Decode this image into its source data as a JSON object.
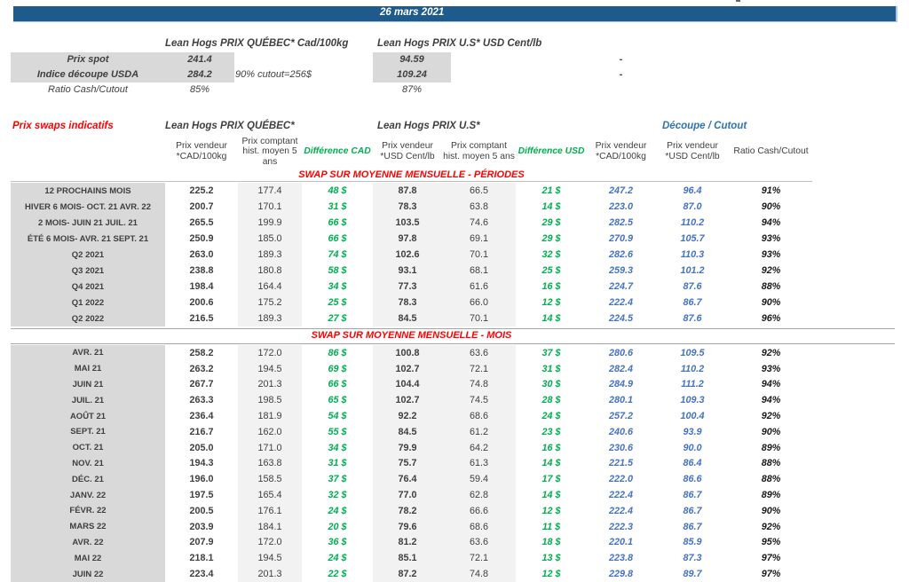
{
  "date": "26 mars 2021",
  "colors": {
    "date_bar_blue": "#1E5A8C",
    "section_red": "#FF0000",
    "difference_green": "#00AF50",
    "cutout_value_blue": "#4472C4",
    "cutout_header_blue": "#2E74B5",
    "label_cell_gray": "#D9D9D9",
    "column_band_gray": "#F2F2F2"
  },
  "top": {
    "quebec_header": "Lean Hogs PRIX QUÉBEC* Cad/100kg",
    "us_header": "Lean Hogs PRIX U.S* USD Cent/lb",
    "spot_label": "Prix spot",
    "spot_cad": "241.4",
    "spot_usd": "94.59",
    "spot_dash": "-",
    "indice_label": "Indice découpe USDA",
    "indice_cad": "284.2",
    "indice_usd": "109.24",
    "indice_note": "90% cutout=256$",
    "indice_dash": "-",
    "ratio_label": "Ratio Cash/Cutout",
    "ratio_cad": "85%",
    "ratio_usd": "87%"
  },
  "swaps": {
    "title": "Prix swaps indicatifs",
    "group_quebec": "Lean Hogs PRIX QUÉBEC*",
    "group_us": "Lean Hogs PRIX U.S*",
    "group_cutout": "Découpe / Cutout",
    "col_headers": [
      "Prix vendeur *CAD/100kg",
      "Prix comptant hist. moyen 5 ans",
      "Différence CAD",
      "Prix vendeur *USD Cent/lb",
      "Prix comptant hist. moyen 5 ans",
      "Différence USD",
      "Prix vendeur *CAD/100kg",
      "Prix vendeur *USD Cent/lb",
      "Ratio Cash/Cutout"
    ],
    "section1_title": "SWAP SUR MOYENNE MENSUELLE - PÉRIODES",
    "section2_title": "SWAP SUR MOYENNE MENSUELLE - MOIS",
    "periods": [
      [
        "12 PROCHAINS MOIS",
        "225.2",
        "177.4",
        "48 $",
        "87.8",
        "66.5",
        "21 $",
        "247.2",
        "96.4",
        "91%"
      ],
      [
        "HIVER 6 MOIS- OCT. 21 AVR. 22",
        "200.7",
        "170.1",
        "31 $",
        "78.3",
        "63.8",
        "14 $",
        "223.0",
        "87.0",
        "90%"
      ],
      [
        "2 MOIS- JUIN 21 JUIL. 21",
        "265.5",
        "199.9",
        "66 $",
        "103.5",
        "74.6",
        "29 $",
        "282.5",
        "110.2",
        "94%"
      ],
      [
        "ÉTÉ 6 MOIS- AVR. 21 SEPT. 21",
        "250.9",
        "185.0",
        "66 $",
        "97.8",
        "69.1",
        "29 $",
        "270.9",
        "105.7",
        "93%"
      ],
      [
        "Q2 2021",
        "263.0",
        "189.3",
        "74 $",
        "102.6",
        "70.1",
        "32 $",
        "282.6",
        "110.3",
        "93%"
      ],
      [
        "Q3 2021",
        "238.8",
        "180.8",
        "58 $",
        "93.1",
        "68.1",
        "25 $",
        "259.3",
        "101.2",
        "92%"
      ],
      [
        "Q4 2021",
        "198.4",
        "164.4",
        "34 $",
        "77.3",
        "61.6",
        "16 $",
        "224.7",
        "87.6",
        "88%"
      ],
      [
        "Q1 2022",
        "200.6",
        "175.2",
        "25 $",
        "78.3",
        "66.0",
        "12 $",
        "222.4",
        "86.7",
        "90%"
      ],
      [
        "Q2 2022",
        "216.5",
        "189.3",
        "27 $",
        "84.5",
        "70.1",
        "14 $",
        "224.5",
        "87.6",
        "96%"
      ]
    ],
    "months": [
      [
        "AVR. 21",
        "258.2",
        "172.0",
        "86 $",
        "100.8",
        "63.6",
        "37 $",
        "280.6",
        "109.5",
        "92%"
      ],
      [
        "MAI 21",
        "263.2",
        "194.5",
        "69 $",
        "102.7",
        "72.1",
        "31 $",
        "282.4",
        "110.2",
        "93%"
      ],
      [
        "JUIN 21",
        "267.7",
        "201.3",
        "66 $",
        "104.4",
        "74.8",
        "30 $",
        "284.9",
        "111.2",
        "94%"
      ],
      [
        "JUIL. 21",
        "263.3",
        "198.5",
        "65 $",
        "102.7",
        "74.5",
        "28 $",
        "280.1",
        "109.3",
        "94%"
      ],
      [
        "AOÛT 21",
        "236.4",
        "181.9",
        "54 $",
        "92.2",
        "68.6",
        "24 $",
        "257.2",
        "100.4",
        "92%"
      ],
      [
        "SEPT. 21",
        "216.7",
        "162.0",
        "55 $",
        "84.5",
        "61.2",
        "23 $",
        "240.6",
        "93.9",
        "90%"
      ],
      [
        "OCT. 21",
        "205.0",
        "171.0",
        "34 $",
        "79.9",
        "64.2",
        "16 $",
        "230.6",
        "90.0",
        "89%"
      ],
      [
        "NOV. 21",
        "194.3",
        "163.8",
        "31 $",
        "75.7",
        "61.3",
        "14 $",
        "221.5",
        "86.4",
        "88%"
      ],
      [
        "DÉC. 21",
        "196.0",
        "158.5",
        "37 $",
        "76.4",
        "59.4",
        "17 $",
        "222.0",
        "86.6",
        "88%"
      ],
      [
        "JANV. 22",
        "197.5",
        "165.4",
        "32 $",
        "77.0",
        "62.8",
        "14 $",
        "222.4",
        "86.7",
        "89%"
      ],
      [
        "FÉVR. 22",
        "200.5",
        "176.1",
        "24 $",
        "78.2",
        "66.6",
        "12 $",
        "222.4",
        "86.7",
        "90%"
      ],
      [
        "MARS 22",
        "203.9",
        "184.1",
        "20 $",
        "79.6",
        "68.6",
        "11 $",
        "222.3",
        "86.7",
        "92%"
      ],
      [
        "AVR. 22",
        "207.9",
        "172.0",
        "36 $",
        "81.2",
        "63.6",
        "18 $",
        "220.1",
        "85.9",
        "95%"
      ],
      [
        "MAI 22",
        "218.1",
        "194.5",
        "24 $",
        "85.1",
        "72.1",
        "13 $",
        "223.8",
        "87.3",
        "97%"
      ],
      [
        "JUIN 22",
        "223.4",
        "201.3",
        "22 $",
        "87.2",
        "74.8",
        "12 $",
        "229.8",
        "89.7",
        "97%"
      ]
    ]
  }
}
